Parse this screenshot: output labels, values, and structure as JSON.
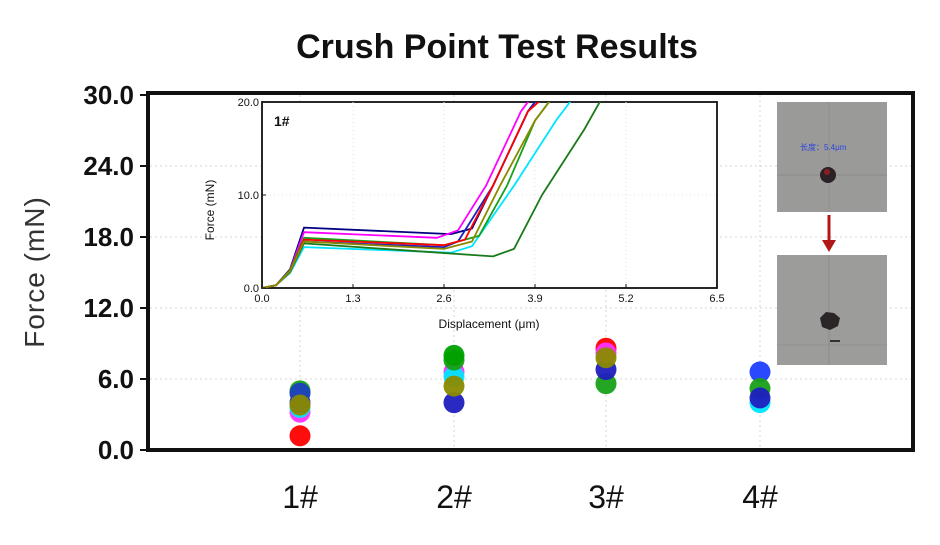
{
  "chart_data": {
    "type": "scatter",
    "title": "Crush Point Test Results",
    "ylabel": "Force (mN)",
    "xlabel": "",
    "ylim": [
      0,
      30
    ],
    "yticks": [
      "0.0",
      "6.0",
      "12.0",
      "18.0",
      "24.0",
      "30.0"
    ],
    "categories": [
      "1#",
      "2#",
      "3#",
      "4#"
    ],
    "grid": true,
    "colors": [
      "#ff0000",
      "#ff00ff",
      "#00e5ff",
      "#1f1fbf",
      "#18a018",
      "#8a8a00",
      "#00a000"
    ],
    "points": [
      {
        "category": "1#",
        "y": 1.2,
        "color": "#ff0000"
      },
      {
        "category": "1#",
        "y": 3.2,
        "color": "#ff33ff"
      },
      {
        "category": "1#",
        "y": 3.6,
        "color": "#00e5ff"
      },
      {
        "category": "1#",
        "y": 4.0,
        "color": "#1f1fbf"
      },
      {
        "category": "1#",
        "y": 5.0,
        "color": "#18a018"
      },
      {
        "category": "1#",
        "y": 4.8,
        "color": "#1f3fbf"
      },
      {
        "category": "1#",
        "y": 3.8,
        "color": "#8a8a00"
      },
      {
        "category": "2#",
        "y": 4.0,
        "color": "#1f1fbf"
      },
      {
        "category": "2#",
        "y": 6.6,
        "color": "#ff33ff"
      },
      {
        "category": "2#",
        "y": 6.2,
        "color": "#00e5ff"
      },
      {
        "category": "2#",
        "y": 7.6,
        "color": "#18a018"
      },
      {
        "category": "2#",
        "y": 5.4,
        "color": "#8a8a00"
      },
      {
        "category": "2#",
        "y": 8.0,
        "color": "#00a000"
      },
      {
        "category": "3#",
        "y": 5.6,
        "color": "#18a018"
      },
      {
        "category": "3#",
        "y": 6.8,
        "color": "#1f1fbf"
      },
      {
        "category": "3#",
        "y": 8.6,
        "color": "#ff0000"
      },
      {
        "category": "3#",
        "y": 8.2,
        "color": "#ff33ff"
      },
      {
        "category": "3#",
        "y": 7.8,
        "color": "#8a8a00"
      },
      {
        "category": "4#",
        "y": 4.0,
        "color": "#00e5ff"
      },
      {
        "category": "4#",
        "y": 6.6,
        "color": "#1f3fff"
      },
      {
        "category": "4#",
        "y": 5.2,
        "color": "#18a018"
      },
      {
        "category": "4#",
        "y": 4.4,
        "color": "#1f1fbf"
      }
    ],
    "inset": {
      "type": "line",
      "name": "1#",
      "xlabel": "Displacement (μm)",
      "ylabel": "Force (mN)",
      "xlim": [
        0,
        6.5
      ],
      "ylim": [
        0,
        20
      ],
      "xticks": [
        "0.0",
        "1.3",
        "2.6",
        "3.9",
        "5.2",
        "6.5"
      ],
      "yticks": [
        "0.0",
        "10.0",
        "20.0"
      ],
      "series": [
        {
          "color": "#000080",
          "x": [
            0,
            0.2,
            0.4,
            0.6,
            2.7,
            3.0,
            3.3,
            3.8,
            4.0
          ],
          "y": [
            0,
            0.3,
            2.0,
            6.5,
            5.8,
            6.4,
            11,
            19,
            21
          ]
        },
        {
          "color": "#ff00ff",
          "x": [
            0,
            0.2,
            0.4,
            0.6,
            2.5,
            2.8,
            3.2,
            3.7,
            3.9
          ],
          "y": [
            0,
            0.3,
            1.9,
            6.0,
            5.4,
            6.2,
            11,
            19,
            21
          ]
        },
        {
          "color": "#00e5ff",
          "x": [
            0,
            0.2,
            0.4,
            0.6,
            2.7,
            3.0,
            3.6,
            4.2,
            4.5
          ],
          "y": [
            0,
            0.3,
            1.6,
            4.4,
            3.8,
            4.5,
            11,
            18,
            21
          ]
        },
        {
          "color": "#1f1fbf",
          "x": [
            0,
            0.2,
            0.4,
            0.6,
            2.6,
            2.8,
            3.3,
            3.8,
            4.0
          ],
          "y": [
            0,
            0.3,
            1.8,
            5.0,
            4.4,
            5.0,
            11,
            19,
            21
          ]
        },
        {
          "color": "#18a018",
          "x": [
            0,
            0.2,
            0.4,
            0.6,
            2.6,
            3.1,
            3.5,
            3.9,
            4.2
          ],
          "y": [
            0,
            0.3,
            1.9,
            5.4,
            4.6,
            5.6,
            11,
            18,
            21
          ]
        },
        {
          "color": "#1a7a1a",
          "x": [
            0,
            0.2,
            0.4,
            0.6,
            3.3,
            3.6,
            4.0,
            4.6,
            4.9
          ],
          "y": [
            0,
            0.3,
            1.7,
            4.8,
            3.4,
            4.2,
            10,
            17,
            21
          ]
        },
        {
          "color": "#ff0000",
          "x": [
            0,
            0.2,
            0.4,
            0.6,
            2.6,
            2.9,
            3.3,
            3.8,
            4.1
          ],
          "y": [
            0,
            0.3,
            1.8,
            5.2,
            4.6,
            5.2,
            11,
            19,
            21
          ]
        },
        {
          "color": "#8a8a00",
          "x": [
            0,
            0.2,
            0.4,
            0.6,
            2.6,
            3.0,
            3.4,
            3.9,
            4.2
          ],
          "y": [
            0,
            0.3,
            1.8,
            5.0,
            4.2,
            5.0,
            11,
            18,
            21
          ]
        }
      ]
    },
    "micrograph_label": "长度：5.4μm"
  }
}
